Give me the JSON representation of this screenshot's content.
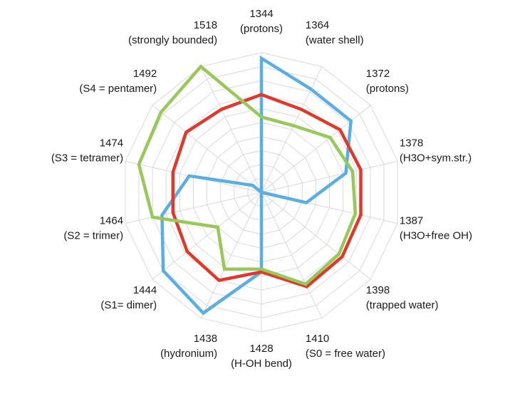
{
  "chart_data": {
    "type": "radar",
    "categories": [
      [
        "1344",
        "(protons)"
      ],
      [
        "1364",
        "(water shell)"
      ],
      [
        "1372",
        "(protons)"
      ],
      [
        "1378",
        "(H3O+sym.str.)"
      ],
      [
        "1387",
        "(H3O+free OH)"
      ],
      [
        "1398",
        "(trapped water)"
      ],
      [
        "1410",
        "(S0 = free water)"
      ],
      [
        "1428",
        "(H-OH bend)"
      ],
      [
        "1438",
        "(hydronium)"
      ],
      [
        "1444",
        "(S1= dimer)"
      ],
      [
        "1464",
        "(S2 = trimer)"
      ],
      [
        "1474",
        "(S3 = tetramer)"
      ],
      [
        "1492",
        "(S4 = pentamer)"
      ],
      [
        "1518",
        "(strongly bounded)"
      ]
    ],
    "rlim": [
      0,
      1
    ],
    "grid_rings": 10,
    "grid": true,
    "legend": "none",
    "series": [
      {
        "color": "#5aaee3",
        "values": [
          0.96,
          0.82,
          0.82,
          0.62,
          0.33,
          0.0,
          0.0,
          0.57,
          0.96,
          0.9,
          0.73,
          0.53,
          0.08,
          0.0
        ]
      },
      {
        "color": "#e0392b",
        "values": [
          0.7,
          0.66,
          0.72,
          0.73,
          0.73,
          0.74,
          0.75,
          0.57,
          0.7,
          0.68,
          0.65,
          0.65,
          0.69,
          0.66
        ]
      },
      {
        "color": "#97c85a",
        "values": [
          0.54,
          0.53,
          0.63,
          0.67,
          0.69,
          0.71,
          0.73,
          0.55,
          0.61,
          0.4,
          0.8,
          0.9,
          0.92,
          1.0
        ]
      }
    ]
  }
}
